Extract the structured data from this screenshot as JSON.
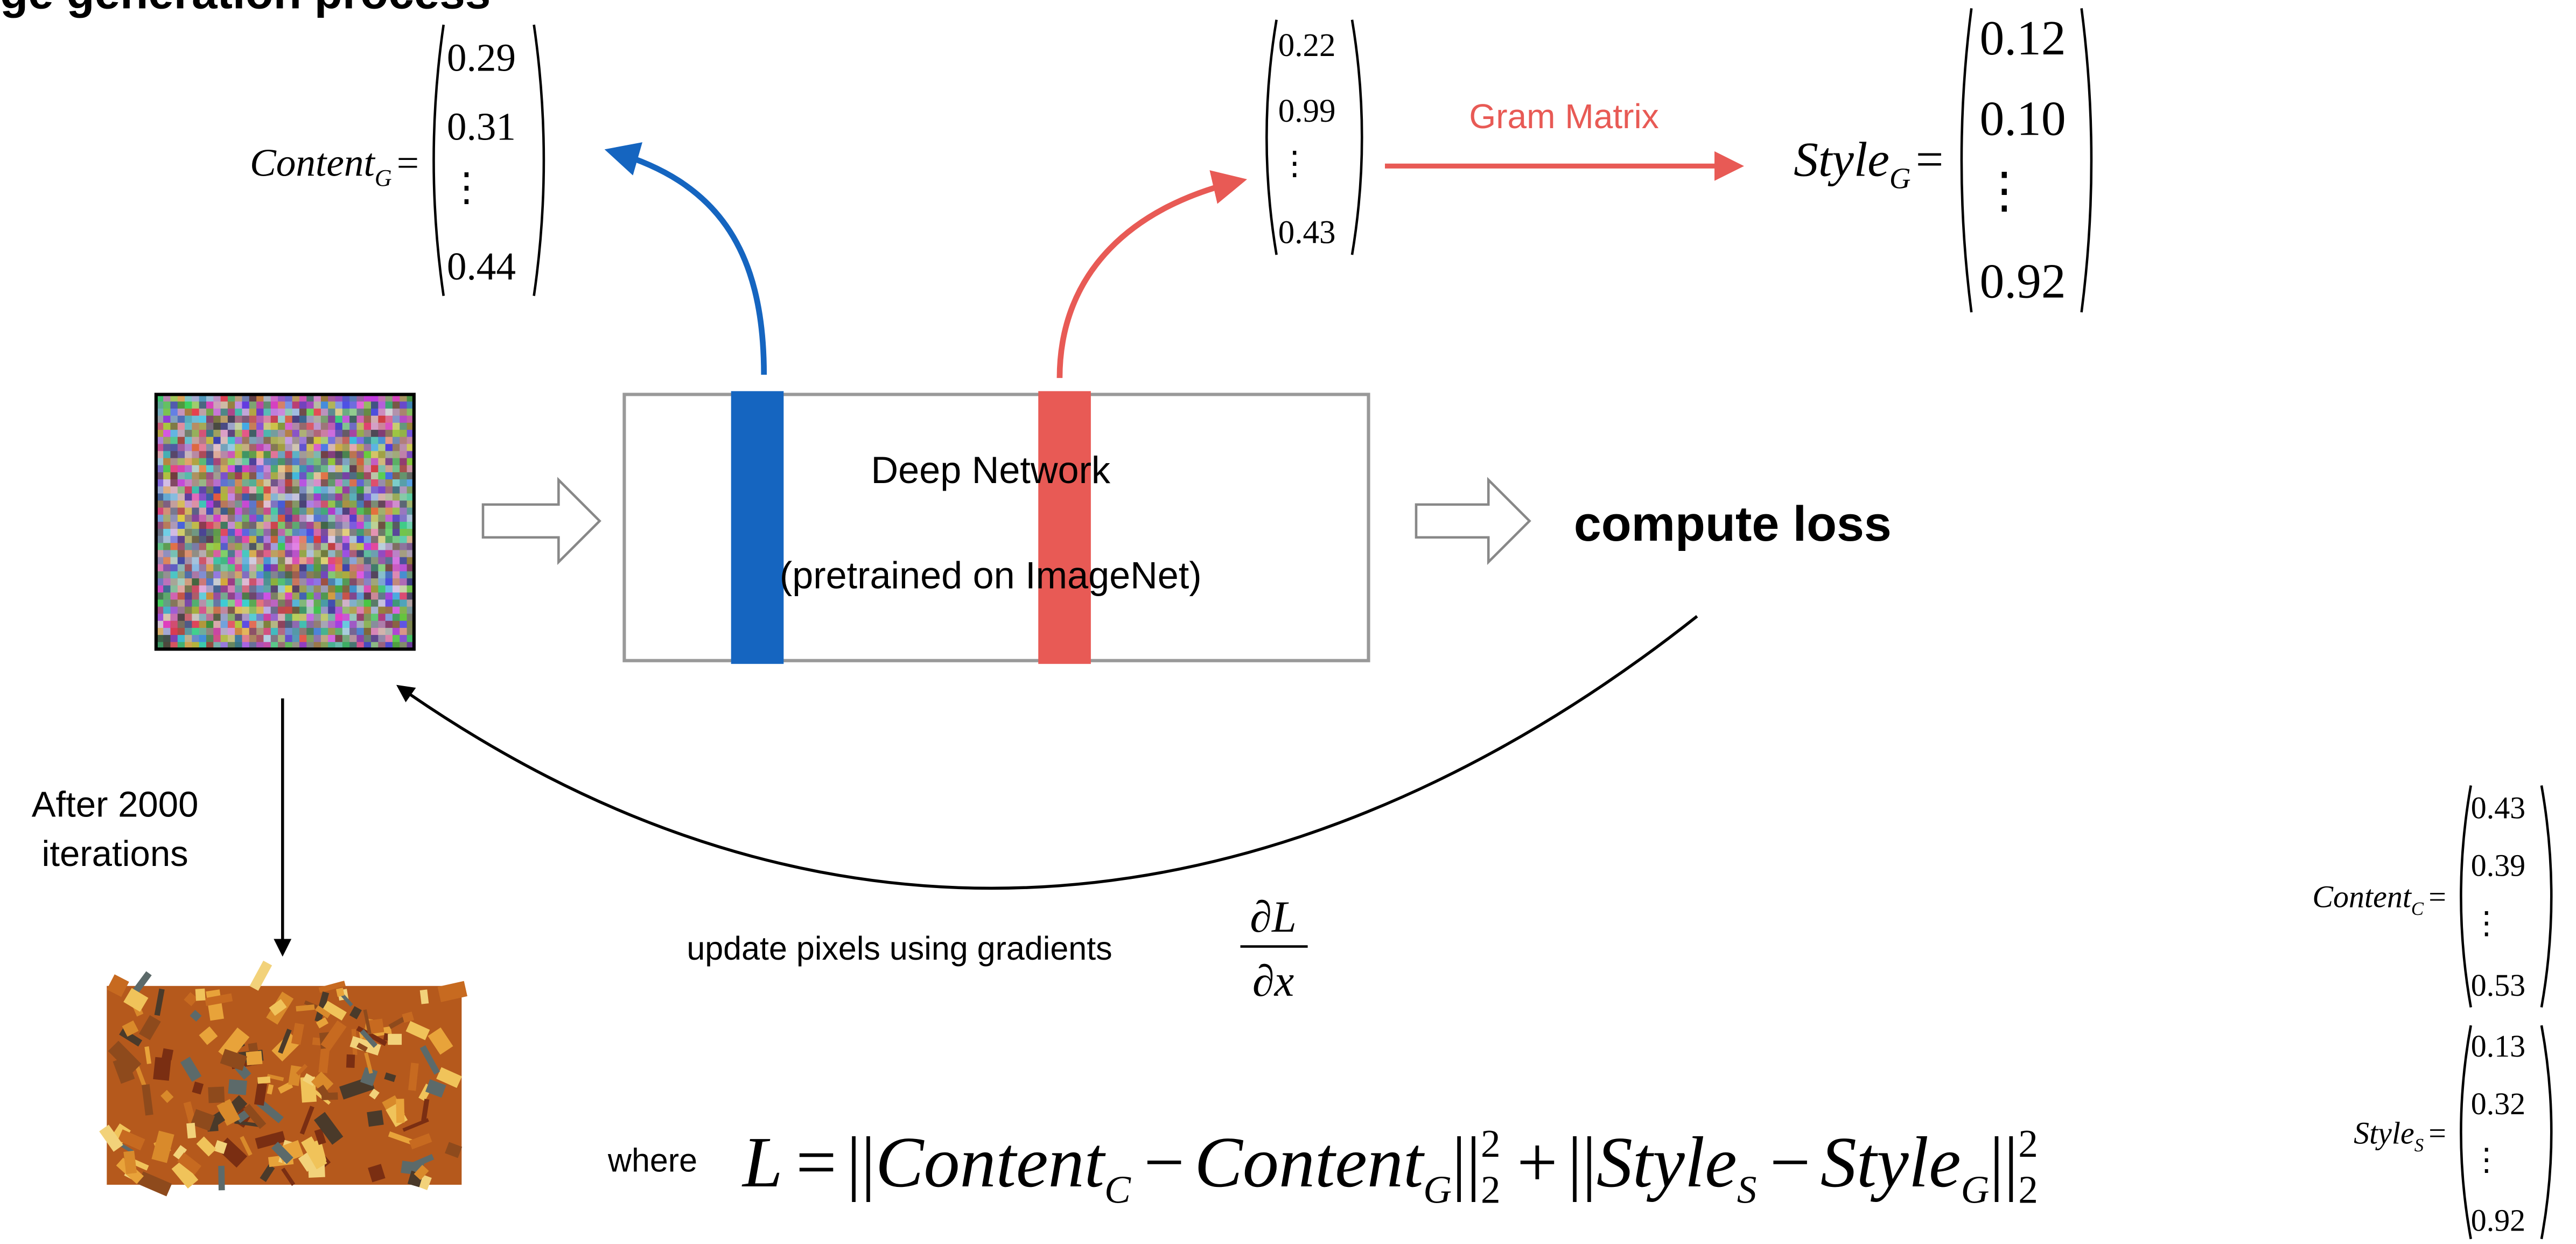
{
  "header": {
    "title": "ge generation process"
  },
  "vectors": [
    {
      "label": "Content",
      "sub": "G",
      "eq": "=",
      "entries": [
        "0.29",
        "0.31",
        "⋮",
        "0.44"
      ]
    },
    {
      "entries": [
        "0.22",
        "0.99",
        "⋮",
        "0.43"
      ]
    },
    {
      "label": "Style",
      "sub": "G",
      "eq": "=",
      "entries": [
        "0.12",
        "0.10",
        "⋮",
        "0.92"
      ]
    },
    {
      "label": "Content",
      "sub": "C",
      "eq": "=",
      "entries": [
        "0.43",
        "0.39",
        "⋮",
        "0.53"
      ]
    },
    {
      "label": "Style",
      "sub": "S",
      "eq": "=",
      "entries": [
        "0.13",
        "0.32",
        "⋮",
        "0.92"
      ]
    }
  ],
  "gram_label": "Gram Matrix",
  "network": {
    "title": "Deep Network",
    "subtitle": "(pretrained on ImageNet)"
  },
  "compute_loss": "compute loss",
  "iterations_label": [
    "After 2000",
    "iterations"
  ],
  "update_label": "update pixels using gradients",
  "gradient": {
    "num": "∂L",
    "den": "∂x"
  },
  "formula": {
    "where": "where",
    "lhs": "L",
    "eq": "=",
    "bar": "||",
    "minus": "−",
    "plus": "+",
    "a1": "Content",
    "a1_sub": "C",
    "b1": "Content",
    "b1_sub": "G",
    "a2": "Style",
    "a2_sub": "S",
    "b2": "Style",
    "b2_sub": "G",
    "norm_sub": "2",
    "norm_sup": "2"
  }
}
